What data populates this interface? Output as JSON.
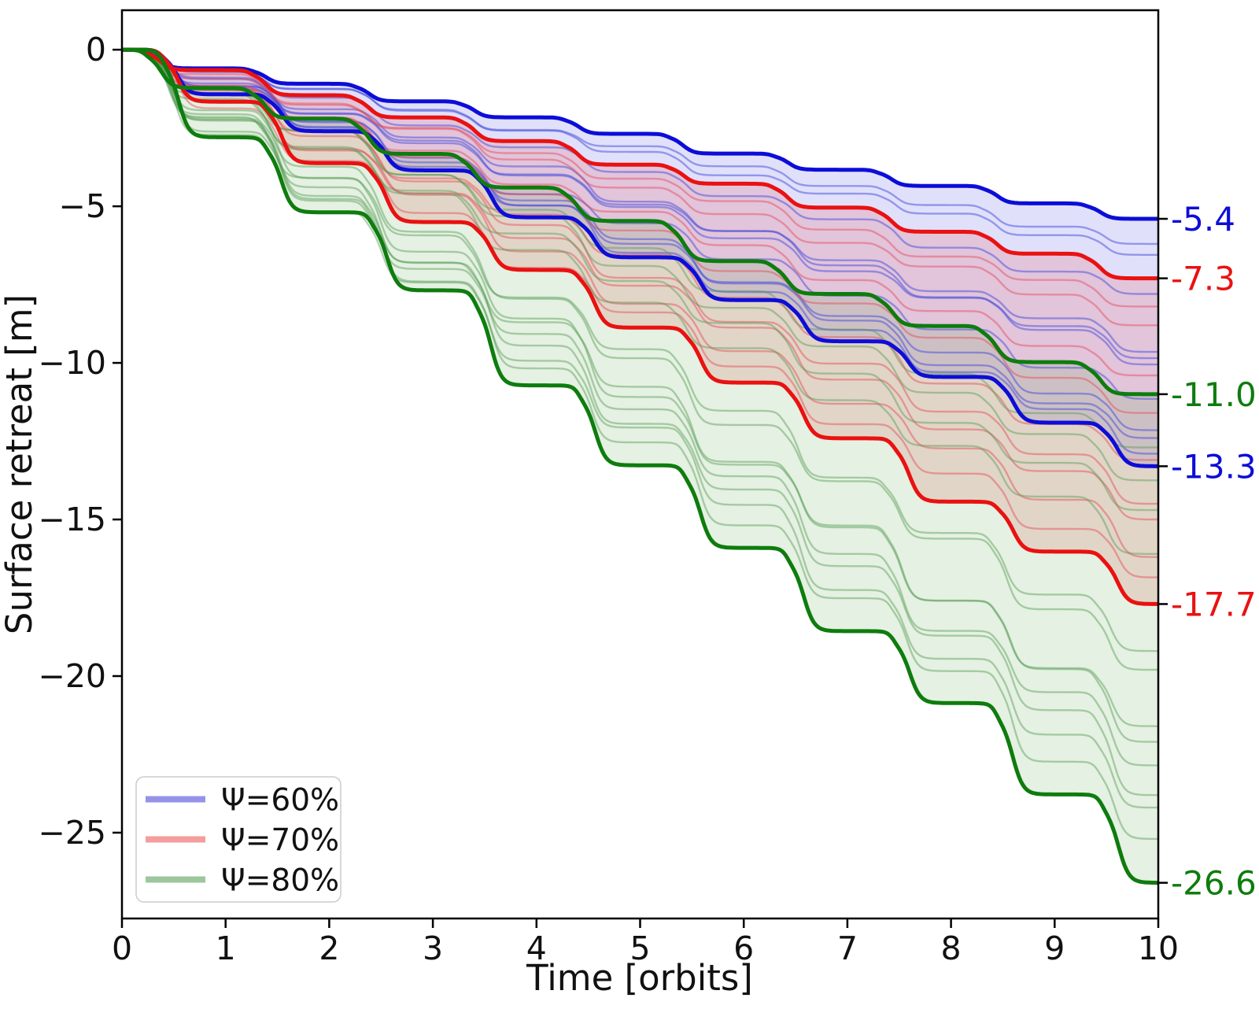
{
  "chart_data": {
    "type": "line",
    "title": "",
    "xlabel": "Time [orbits]",
    "ylabel": "Surface retreat [m]",
    "xlim": [
      0,
      10
    ],
    "ylim": [
      -27.74,
      1.26
    ],
    "grid": false,
    "legend_position": "lower left",
    "description": "Staircase surface-retreat curves vs time; one erosion step per orbit; shaded band between upper and lower bound curve of each porosity family; right-edge annotations give final retreat at 10 orbits",
    "xticks": [
      {
        "value": 0,
        "label": "0"
      },
      {
        "value": 1,
        "label": "1"
      },
      {
        "value": 2,
        "label": "2"
      },
      {
        "value": 3,
        "label": "3"
      },
      {
        "value": 4,
        "label": "4"
      },
      {
        "value": 5,
        "label": "5"
      },
      {
        "value": 6,
        "label": "6"
      },
      {
        "value": 7,
        "label": "7"
      },
      {
        "value": 8,
        "label": "8"
      },
      {
        "value": 9,
        "label": "9"
      },
      {
        "value": 10,
        "label": "10"
      }
    ],
    "yticks": [
      {
        "value": 0,
        "label": "0"
      },
      {
        "value": -5,
        "label": "−5"
      },
      {
        "value": -10,
        "label": "−10"
      },
      {
        "value": -15,
        "label": "−15"
      },
      {
        "value": -20,
        "label": "−20"
      },
      {
        "value": -25,
        "label": "−25"
      }
    ],
    "families": [
      {
        "label": "Ψ=60%",
        "bold_color": "#0d0dd8",
        "faint_color": "rgba(70,75,215,0.50)",
        "fill_color": "rgba(100,100,235,0.20)",
        "legend_swatch": "#9394e8",
        "upper_final": -5.4,
        "lower_final": -13.3,
        "member_finals": [
          -6.2,
          -6.55,
          -7.8,
          -9.65,
          -9.85,
          -10.05,
          -11.15,
          -12.15,
          -12.4,
          -12.9
        ],
        "end_labels": [
          {
            "text": "-5.4",
            "value": -5.4
          },
          {
            "text": "-13.3",
            "value": -13.3
          }
        ]
      },
      {
        "label": "Ψ=70%",
        "bold_color": "#ea1111",
        "faint_color": "rgba(228,70,85,0.45)",
        "fill_color": "rgba(235,85,95,0.20)",
        "legend_swatch": "#f59c9c",
        "upper_final": -7.3,
        "lower_final": -17.7,
        "member_finals": [
          -8.2,
          -8.8,
          -10.4,
          -11.6,
          -13.1,
          -14.5,
          -15.0,
          -16.2,
          -16.85
        ],
        "end_labels": [
          {
            "text": "-7.3",
            "value": -7.3
          },
          {
            "text": "-17.7",
            "value": -17.7
          }
        ]
      },
      {
        "label": "Ψ=80%",
        "bold_color": "#0e7c0e",
        "faint_color": "rgba(85,155,85,0.45)",
        "fill_color": "rgba(110,175,95,0.18)",
        "legend_swatch": "#9cc79c",
        "upper_final": -11.0,
        "lower_final": -26.6,
        "member_finals": [
          -12.7,
          -13.75,
          -14.7,
          -16.1,
          -19.2,
          -19.8,
          -21.6,
          -22.1,
          -22.85,
          -23.8,
          -24.2,
          -25.2
        ],
        "end_labels": [
          {
            "text": "-11.0",
            "value": -11.0
          },
          {
            "text": "-26.6",
            "value": -26.6
          }
        ]
      }
    ]
  }
}
